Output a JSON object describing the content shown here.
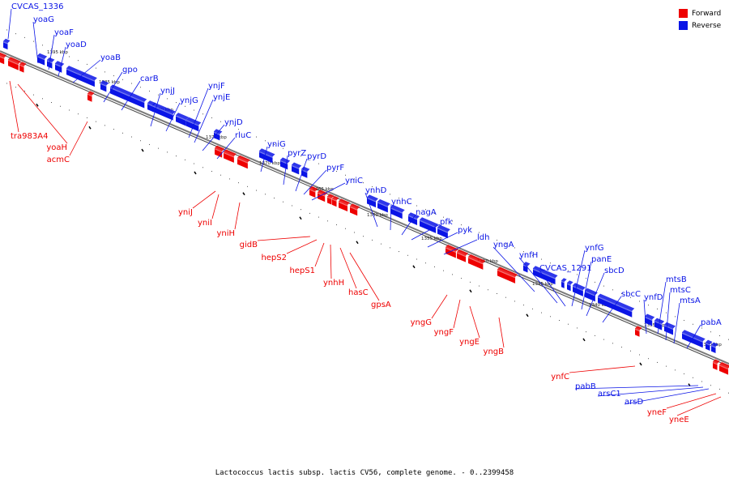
{
  "caption": "Lactococcus lactis subsp. lactis CV56, complete genome. - 0..2399458",
  "legend": [
    {
      "label": "Forward",
      "color": "#ee0000"
    },
    {
      "label": "Reverse",
      "color": "#0a14e6"
    }
  ],
  "colors": {
    "forward": "#ee0000",
    "reverse": "#0a14e6",
    "backbone": "#7a7a7a"
  },
  "position_labels": [
    "1395 kbp",
    "1385 kbp",
    "1380 kbp",
    "1375 kbp",
    "1370 kbp",
    "1365 kbp",
    "1360 kbp",
    "1355 kbp",
    "1350 kbp",
    "1345 kbp",
    "1340 kbp",
    "1335 kbp",
    "1330 kbp"
  ],
  "reverse_gene_labels": [
    "CVCAS_1336",
    "yoaG",
    "yoaF",
    "yoaD",
    "yoaB",
    "gpo",
    "carB",
    "ynjJ",
    "ynjG",
    "ynjF",
    "ynjE",
    "ynjD",
    "rluC",
    "yniG",
    "pyrZ",
    "pyrD",
    "pyrF",
    "yniC",
    "ynhD",
    "ynhC",
    "nagA",
    "pfk",
    "pyk",
    "ldh",
    "yngA",
    "ynfH",
    "CVCAS_1291",
    "ynfG",
    "panE",
    "sbcD",
    "sbcC",
    "ynfD",
    "mtsB",
    "mtsC",
    "mtsA",
    "pabA",
    "pabB",
    "arsC1",
    "arsD"
  ],
  "forward_gene_labels": [
    "tra983A4",
    "yoaH",
    "acmC",
    "yniJ",
    "yniI",
    "yniH",
    "gidB",
    "hepS2",
    "hepS1",
    "ynhH",
    "hasC",
    "gpsA",
    "yngG",
    "yngF",
    "yngE",
    "yngB",
    "ynfC",
    "yneF",
    "yneE"
  ]
}
